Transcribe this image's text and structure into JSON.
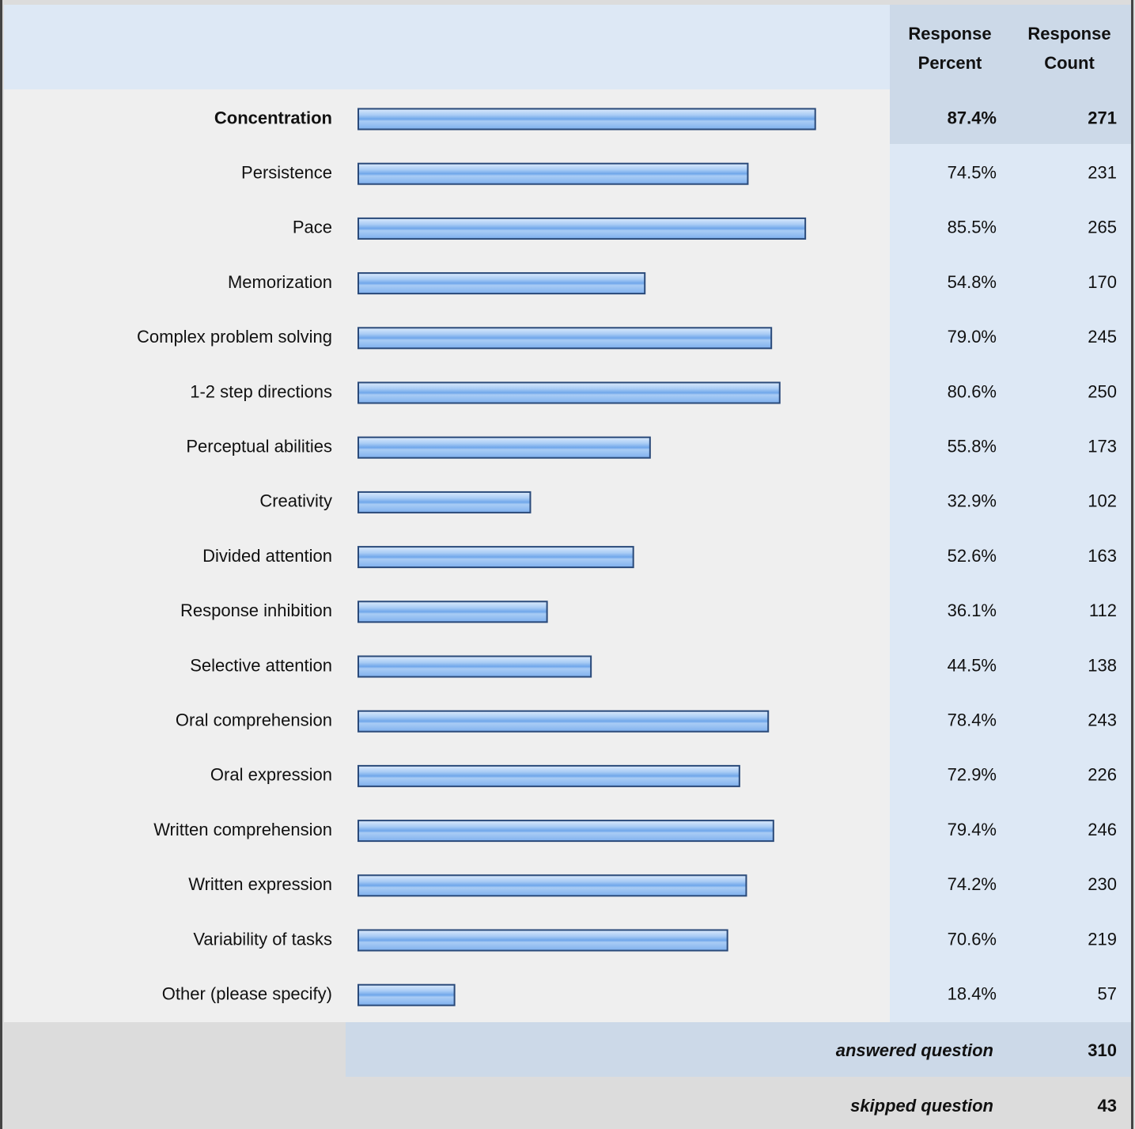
{
  "chart_data": {
    "type": "bar",
    "headers": [
      "Response Percent",
      "Response Count"
    ],
    "categories": [
      "Concentration",
      "Persistence",
      "Pace",
      "Memorization",
      "Complex problem solving",
      "1-2 step directions",
      "Perceptual abilities",
      "Creativity",
      "Divided attention",
      "Response inhibition",
      "Selective attention",
      "Oral comprehension",
      "Oral expression",
      "Written comprehension",
      "Written expression",
      "Variability of tasks",
      "Other (please specify)"
    ],
    "values": [
      87.4,
      74.5,
      85.5,
      54.8,
      79.0,
      80.6,
      55.8,
      32.9,
      52.6,
      36.1,
      44.5,
      78.4,
      72.9,
      79.4,
      74.2,
      70.6,
      18.4
    ],
    "value_labels": [
      "87.4%",
      "74.5%",
      "85.5%",
      "54.8%",
      "79.0%",
      "80.6%",
      "55.8%",
      "32.9%",
      "52.6%",
      "36.1%",
      "44.5%",
      "78.4%",
      "72.9%",
      "79.4%",
      "74.2%",
      "70.6%",
      "18.4%"
    ],
    "counts": [
      271,
      231,
      265,
      170,
      245,
      250,
      173,
      102,
      163,
      112,
      138,
      243,
      226,
      246,
      230,
      219,
      57
    ],
    "color": "#8ab8f0",
    "answered_label": "answered question",
    "answered": 310,
    "skipped_label": "skipped question",
    "skipped": 43
  }
}
